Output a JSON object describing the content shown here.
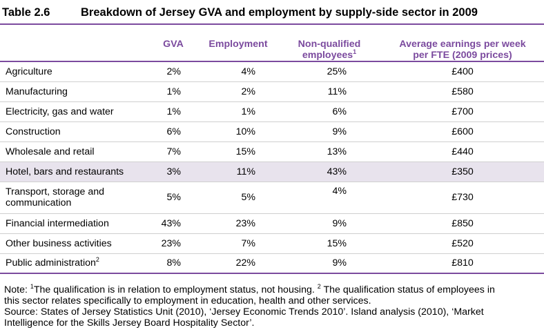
{
  "title": {
    "number": "Table 2.6",
    "text": "Breakdown of Jersey GVA and employment by supply-side sector in 2009"
  },
  "table": {
    "headers": [
      "",
      "GVA",
      "Employment",
      "Non-qualified employees",
      "Average earnings per week per FTE (2009 prices)"
    ],
    "header_parts": {
      "nonq_line1": "Non-qualified",
      "nonq_line2": "employees",
      "nonq_sup": "1",
      "earn_line1": "Average earnings per week",
      "earn_line2": "per FTE (2009 prices)"
    },
    "rows": [
      {
        "sector": "Agriculture",
        "gva": "2%",
        "employment": "4%",
        "nonqualified": "25%",
        "earnings": "£400"
      },
      {
        "sector": "Manufacturing",
        "gva": "1%",
        "employment": "2%",
        "nonqualified": "11%",
        "earnings": "£580"
      },
      {
        "sector": "Electricity, gas and water",
        "gva": "1%",
        "employment": "1%",
        "nonqualified": "6%",
        "earnings": "£700"
      },
      {
        "sector": "Construction",
        "gva": "6%",
        "employment": "10%",
        "nonqualified": "9%",
        "earnings": "£600"
      },
      {
        "sector": "Wholesale and retail",
        "gva": "7%",
        "employment": "15%",
        "nonqualified": "13%",
        "earnings": "£440"
      },
      {
        "sector": "Hotel, bars and restaurants",
        "gva": "3%",
        "employment": "11%",
        "nonqualified": "43%",
        "earnings": "£350",
        "highlighted": true
      },
      {
        "sector": "Transport, storage and",
        "sector_line2": "communication",
        "gva": "5%",
        "employment": "5%",
        "nonqualified": "4%",
        "earnings": "£730"
      },
      {
        "sector": "Financial intermediation",
        "gva": "43%",
        "employment": "23%",
        "nonqualified": "9%",
        "earnings": "£850"
      },
      {
        "sector": "Other business activities",
        "gva": "23%",
        "employment": "7%",
        "nonqualified": "15%",
        "earnings": "£520"
      },
      {
        "sector": "Public administration",
        "sector_sup": "2",
        "gva": "8%",
        "employment": "22%",
        "nonqualified": "9%",
        "earnings": "£810"
      }
    ]
  },
  "notes": {
    "prefix": "Note: ",
    "sup1": "1",
    "note1": "The qualification is in relation to employment status, not housing. ",
    "sup2": "2",
    "note2": " The qualification status of employees in",
    "note2_line2": "this sector relates specifically to employment in education, health and other services.",
    "source_line1": "Source: States of Jersey Statistics Unit (2010), ‘Jersey Economic Trends 2010’. Island analysis (2010), ‘Market",
    "source_line2": "Intelligence for the Skills Jersey Board Hospitality Sector’."
  },
  "colors": {
    "accent": "#7b4a9e",
    "highlight_row": "#e8e3ed",
    "row_rule": "#cfcfcf"
  }
}
